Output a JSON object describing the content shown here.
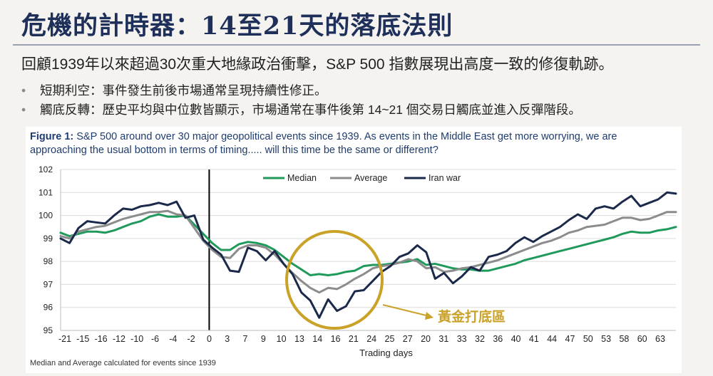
{
  "slide": {
    "title": "危機的計時器：14至21天的落底法則",
    "lead": "回顧1939年以來超過30次重大地緣政治衝擊，S&P 500 指數展現出高度一致的修復軌跡。",
    "bullets": [
      "短期利空：事件發生前後市場通常呈現持續性修正。",
      "觸底反轉：歷史平均與中位數皆顯示，市場通常在事件後第 14~21 個交易日觸底並進入反彈階段。"
    ]
  },
  "figure": {
    "caption_label": "Figure 1:",
    "caption_text": " S&P 500 around over 30 major geopolitical events since 1939. As events in the Middle East get more worrying, we are approaching the usual bottom in terms of timing..... will this time be the same or different?",
    "footnote": "Median and Average calculated for events since 1939",
    "annotation": "黃金打底區",
    "colors": {
      "gold": "#c9a227"
    }
  },
  "chart_data": {
    "type": "line",
    "xlabel": "Trading days",
    "ylim": [
      95,
      102
    ],
    "yticks": [
      95,
      96,
      97,
      98,
      99,
      100,
      101,
      102
    ],
    "xtick_labels": [
      "-21",
      "-15",
      "-16",
      "-12",
      "-10",
      "-6",
      "-4",
      "-2",
      "0",
      "3",
      "7",
      "9",
      "10",
      "13",
      "14",
      "16",
      "21",
      "24",
      "25",
      "27",
      "20",
      "31",
      "33",
      "32",
      "36",
      "40",
      "41",
      "44",
      "47",
      "50",
      "53",
      "58",
      "60",
      "63"
    ],
    "grid": "horizontal",
    "legend_position": "top-center",
    "event_marker_at": "0",
    "series": [
      {
        "name": "Median",
        "color": "#1f9a5b",
        "values": [
          99.25,
          99.1,
          99.2,
          99.3,
          99.3,
          99.25,
          99.35,
          99.5,
          99.65,
          99.75,
          99.95,
          100.05,
          99.95,
          99.95,
          100.0,
          99.6,
          99.2,
          98.8,
          98.5,
          98.5,
          98.75,
          98.85,
          98.8,
          98.7,
          98.5,
          98.2,
          97.9,
          97.65,
          97.4,
          97.45,
          97.4,
          97.45,
          97.55,
          97.6,
          97.8,
          97.85,
          97.85,
          97.9,
          97.95,
          98.0,
          98.1,
          97.85,
          97.9,
          97.8,
          97.7,
          97.65,
          97.65,
          97.6,
          97.6,
          97.7,
          97.8,
          97.9,
          98.05,
          98.15,
          98.25,
          98.35,
          98.45,
          98.55,
          98.65,
          98.75,
          98.85,
          98.95,
          99.05,
          99.2,
          99.3,
          99.25,
          99.25,
          99.35,
          99.4,
          99.5
        ]
      },
      {
        "name": "Average",
        "color": "#8c8c8c",
        "values": [
          99.1,
          99.0,
          99.3,
          99.4,
          99.5,
          99.55,
          99.7,
          99.85,
          99.95,
          100.05,
          100.15,
          100.15,
          100.2,
          100.05,
          100.0,
          99.45,
          98.9,
          98.5,
          98.2,
          98.15,
          98.55,
          98.7,
          98.7,
          98.6,
          98.3,
          97.9,
          97.5,
          97.15,
          96.85,
          96.65,
          96.85,
          96.8,
          97.0,
          97.25,
          97.45,
          97.7,
          97.8,
          97.85,
          97.95,
          98.1,
          98.0,
          97.7,
          97.75,
          97.55,
          97.6,
          97.7,
          97.75,
          97.85,
          97.95,
          98.05,
          98.2,
          98.35,
          98.5,
          98.65,
          98.8,
          98.9,
          99.05,
          99.25,
          99.35,
          99.5,
          99.55,
          99.6,
          99.75,
          99.9,
          99.9,
          99.8,
          99.85,
          100.0,
          100.15,
          100.15
        ]
      },
      {
        "name": "Iran war",
        "color": "#1b2a4a",
        "values": [
          99.0,
          98.8,
          99.45,
          99.75,
          99.7,
          99.65,
          100.0,
          100.3,
          100.25,
          100.4,
          100.45,
          100.55,
          100.45,
          100.6,
          99.9,
          100.0,
          98.95,
          98.6,
          98.3,
          97.6,
          97.55,
          98.6,
          98.45,
          98.05,
          98.45,
          97.9,
          97.45,
          96.65,
          96.3,
          95.55,
          96.35,
          95.85,
          96.05,
          96.7,
          96.75,
          97.15,
          97.55,
          97.8,
          98.2,
          98.35,
          98.7,
          98.4,
          97.25,
          97.5,
          97.05,
          97.35,
          97.75,
          97.6,
          98.2,
          98.3,
          98.45,
          98.8,
          99.05,
          98.85,
          99.1,
          99.3,
          99.5,
          99.8,
          100.05,
          99.85,
          100.3,
          100.4,
          100.3,
          100.6,
          100.85,
          100.4,
          100.55,
          100.7,
          101.0,
          100.95
        ]
      }
    ]
  }
}
